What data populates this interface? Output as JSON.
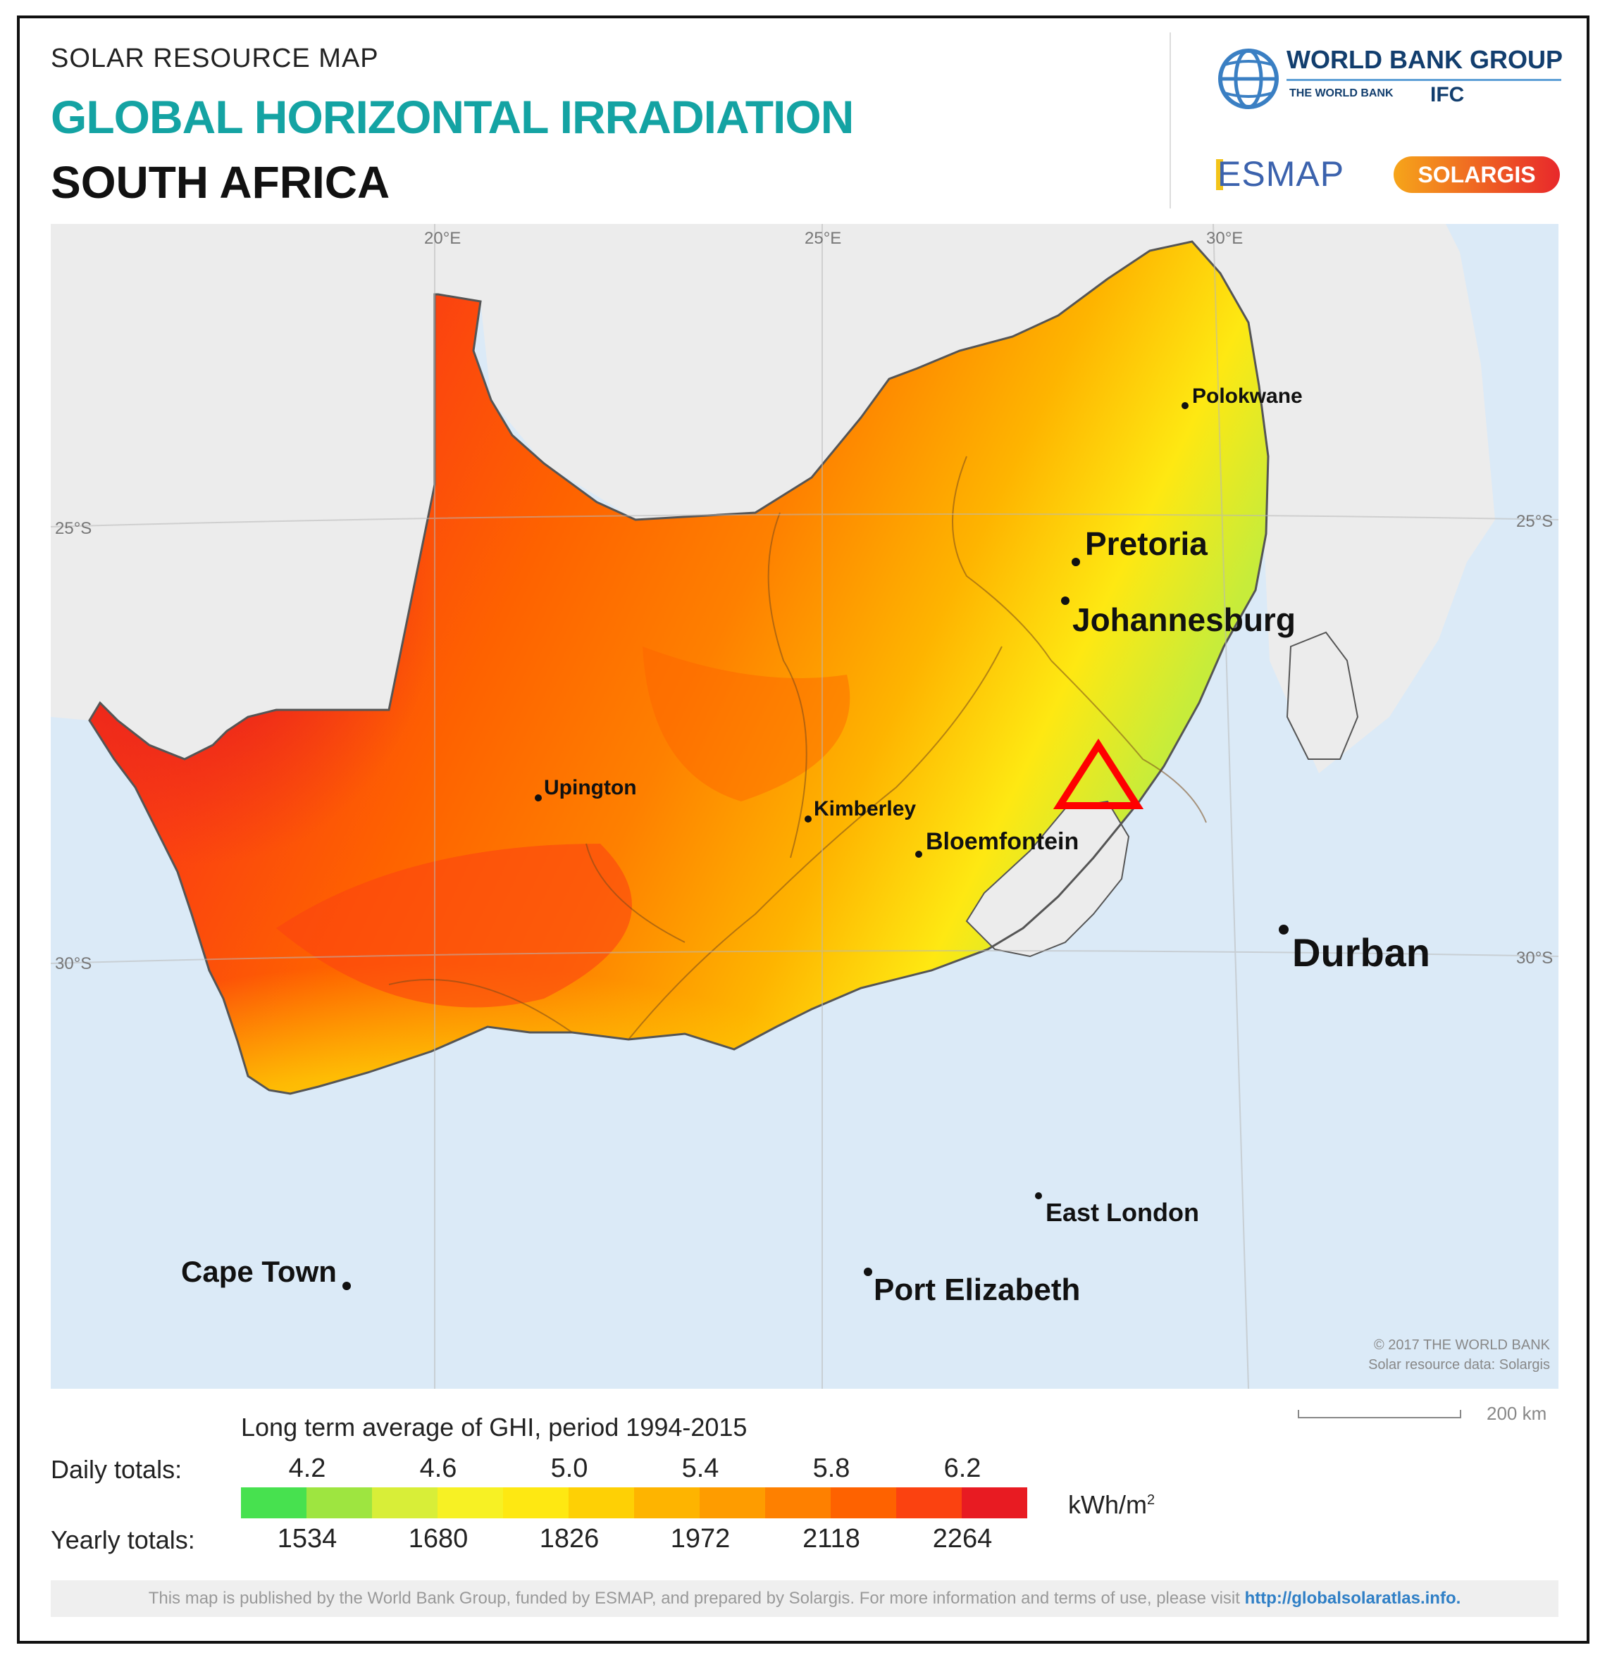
{
  "header": {
    "subtitle": "SOLAR RESOURCE MAP",
    "title": "GLOBAL HORIZONTAL IRRADIATION",
    "country": "SOUTH AFRICA"
  },
  "logos": {
    "world_bank": "WORLD BANK GROUP",
    "world_bank_sub": "THE WORLD BANK",
    "ifc": "IFC",
    "esmap": "ESMAP",
    "solargis": "SOLARGIS"
  },
  "map": {
    "graticule_labels": {
      "lon_20": "20°E",
      "lon_25": "25°E",
      "lon_30": "30°E",
      "lat_25_left": "25°S",
      "lat_25_right": "25°S",
      "lat_30_left": "30°S",
      "lat_30_right": "30°S"
    },
    "cities": {
      "polokwane": "Polokwane",
      "pretoria": "Pretoria",
      "johannesburg": "Johannesburg",
      "upington": "Upington",
      "kimberley": "Kimberley",
      "bloemfontein": "Bloemfontein",
      "durban": "Durban",
      "east_london": "East London",
      "port_elizabeth": "Port Elizabeth",
      "cape_town": "Cape Town"
    },
    "copyright_line1": "© 2017 THE WORLD BANK",
    "copyright_line2": "Solar resource data: Solargis",
    "marker_color": "#ff0000",
    "colors": {
      "land_other": "#ececec",
      "ocean": "#dbeaf7",
      "border": "#555555"
    }
  },
  "scale": {
    "label": "200 km"
  },
  "legend": {
    "caption": "Long term average of GHI, period 1994-2015",
    "daily_label": "Daily totals:",
    "yearly_label": "Yearly totals:",
    "daily_values": [
      "4.2",
      "4.6",
      "5.0",
      "5.4",
      "5.8",
      "6.2"
    ],
    "yearly_values": [
      "1534",
      "1680",
      "1826",
      "1972",
      "2118",
      "2264"
    ],
    "unit": "kWh/m",
    "unit_sup": "2",
    "colors": [
      "#47e14f",
      "#9ee540",
      "#d8ee38",
      "#f7f124",
      "#fee812",
      "#fed005",
      "#feb400",
      "#fe9c00",
      "#fe8000",
      "#fe6200",
      "#fb4210",
      "#e81b22"
    ]
  },
  "footer": {
    "text": "This map is published by the World Bank Group, funded by ESMAP, and prepared by Solargis. For more information and terms of use, please visit",
    "link": "http://globalsolaratlas.info."
  }
}
